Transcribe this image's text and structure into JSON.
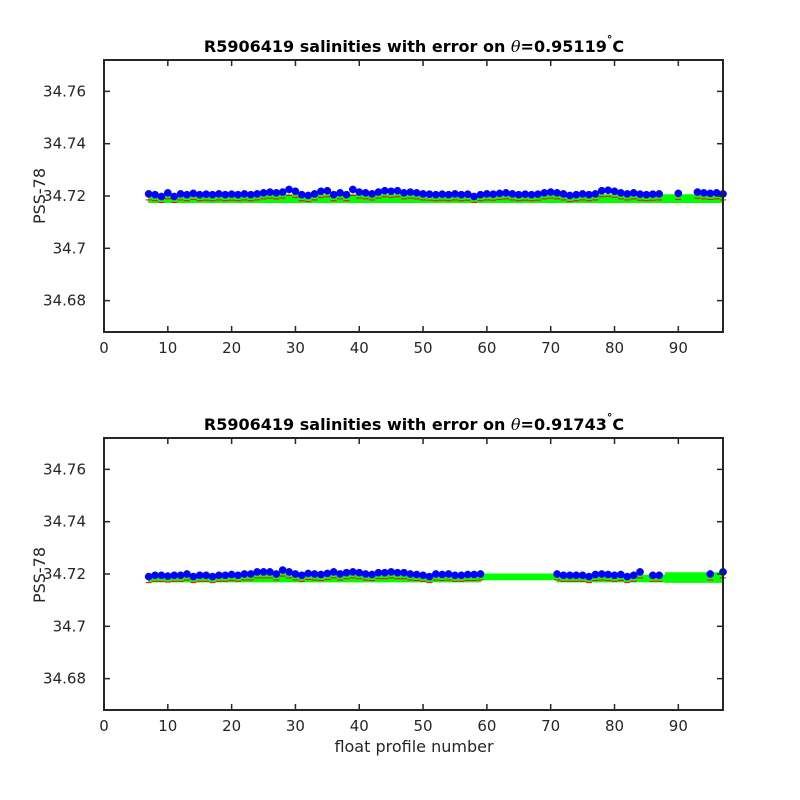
{
  "chart_data": [
    {
      "type": "scatter",
      "title": "R5906419 salinities with error on θ=0.95119°C",
      "title_parts": {
        "prefix": "R5906419 salinities with error on ",
        "theta": "θ",
        "value": "=0.95119",
        "degree": "°",
        "unit": "C"
      },
      "xlabel": "",
      "ylabel": "PSS-78",
      "xlim": [
        0,
        97
      ],
      "ylim": [
        34.668,
        34.772
      ],
      "xticks": [
        0,
        10,
        20,
        30,
        40,
        50,
        60,
        70,
        80,
        90
      ],
      "yticks": [
        34.68,
        34.7,
        34.72,
        34.74,
        34.76
      ],
      "ytick_labels": [
        "34.68",
        "34.7",
        "34.72",
        "34.74",
        "34.76"
      ],
      "grid": false,
      "colors": {
        "points": "#0000ff",
        "error_band": "#00ff00",
        "error_bars": "#ff0000",
        "orange_marks": "#ff9900"
      },
      "band_ranges": [
        {
          "x0": 7,
          "x1": 97,
          "lower": 34.7175,
          "upper": 34.7205
        }
      ],
      "series": [
        {
          "x": [
            7,
            8,
            9,
            10,
            11,
            12,
            13,
            14,
            15,
            16,
            17,
            18,
            19,
            20,
            21,
            22,
            23,
            24,
            25,
            26,
            27,
            28,
            29,
            30,
            31,
            32,
            33,
            34,
            35,
            36,
            37,
            38,
            39,
            40,
            41,
            42,
            43,
            44,
            45,
            46,
            47,
            48,
            49,
            50,
            51,
            52,
            53,
            54,
            55,
            56,
            57,
            58,
            59,
            60,
            61,
            62,
            63,
            64,
            65,
            66,
            67,
            68,
            69,
            70,
            71,
            72,
            73,
            74,
            75,
            76,
            77,
            78,
            79,
            80,
            81,
            82,
            83,
            84,
            85,
            86,
            87,
            90,
            93,
            94,
            95,
            96,
            97
          ],
          "y": [
            34.7208,
            34.7205,
            34.7198,
            34.7212,
            34.7198,
            34.7208,
            34.7205,
            34.721,
            34.7205,
            34.7207,
            34.7205,
            34.7208,
            34.7205,
            34.7207,
            34.7205,
            34.7208,
            34.7205,
            34.7208,
            34.7212,
            34.7215,
            34.7212,
            34.7215,
            34.7225,
            34.7218,
            34.7205,
            34.7202,
            34.7208,
            34.7218,
            34.722,
            34.7205,
            34.7212,
            34.7205,
            34.7225,
            34.7215,
            34.7212,
            34.7208,
            34.7215,
            34.722,
            34.7218,
            34.722,
            34.7212,
            34.7215,
            34.7212,
            34.7208,
            34.7207,
            34.7205,
            34.7207,
            34.7205,
            34.7208,
            34.7205,
            34.7207,
            34.7198,
            34.7205,
            34.7208,
            34.7207,
            34.721,
            34.7212,
            34.7208,
            34.7205,
            34.7207,
            34.7205,
            34.7207,
            34.7212,
            34.7215,
            34.7212,
            34.7208,
            34.7202,
            34.7205,
            34.7208,
            34.7205,
            34.7208,
            34.722,
            34.7222,
            34.7218,
            34.7212,
            34.7208,
            34.7212,
            34.7207,
            34.7205,
            34.7207,
            34.7208,
            34.721,
            34.7215,
            34.7212,
            34.721,
            34.7212,
            34.7208
          ]
        }
      ]
    },
    {
      "type": "scatter",
      "title": "R5906419 salinities with error on θ=0.91743°C",
      "title_parts": {
        "prefix": "R5906419 salinities with error on ",
        "theta": "θ",
        "value": "=0.91743",
        "degree": "°",
        "unit": "C"
      },
      "xlabel": "float profile number",
      "ylabel": "PSS-78",
      "xlim": [
        0,
        97
      ],
      "ylim": [
        34.668,
        34.772
      ],
      "xticks": [
        0,
        10,
        20,
        30,
        40,
        50,
        60,
        70,
        80,
        90
      ],
      "yticks": [
        34.68,
        34.7,
        34.72,
        34.74,
        34.76
      ],
      "ytick_labels": [
        "34.68",
        "34.7",
        "34.72",
        "34.74",
        "34.76"
      ],
      "grid": false,
      "colors": {
        "points": "#0000ff",
        "error_band": "#00ff00",
        "error_bars": "#ff0000",
        "orange_marks": "#ff9900"
      },
      "band_ranges": [
        {
          "x0": 7,
          "x1": 59,
          "lower": 34.717,
          "upper": 34.72
        },
        {
          "x0": 59,
          "x1": 71,
          "lower": 34.7178,
          "upper": 34.72
        },
        {
          "x0": 71,
          "x1": 88,
          "lower": 34.717,
          "upper": 34.7195
        },
        {
          "x0": 88,
          "x1": 97,
          "lower": 34.7168,
          "upper": 34.7205
        }
      ],
      "series": [
        {
          "x": [
            7,
            8,
            9,
            10,
            11,
            12,
            13,
            14,
            15,
            16,
            17,
            18,
            19,
            20,
            21,
            22,
            23,
            24,
            25,
            26,
            27,
            28,
            29,
            30,
            31,
            32,
            33,
            34,
            35,
            36,
            37,
            38,
            39,
            40,
            41,
            42,
            43,
            44,
            45,
            46,
            47,
            48,
            49,
            50,
            51,
            52,
            53,
            54,
            55,
            56,
            57,
            58,
            59,
            71,
            72,
            73,
            74,
            75,
            76,
            77,
            78,
            79,
            80,
            81,
            82,
            83,
            84,
            86,
            87,
            95,
            97
          ],
          "y": [
            34.719,
            34.7195,
            34.7195,
            34.7192,
            34.7195,
            34.7195,
            34.72,
            34.719,
            34.7195,
            34.7195,
            34.719,
            34.7195,
            34.7195,
            34.7198,
            34.7195,
            34.72,
            34.72,
            34.7208,
            34.7208,
            34.7208,
            34.72,
            34.7215,
            34.7208,
            34.72,
            34.7195,
            34.7202,
            34.72,
            34.7198,
            34.7202,
            34.7208,
            34.72,
            34.7205,
            34.7208,
            34.7205,
            34.72,
            34.7198,
            34.7205,
            34.7205,
            34.7208,
            34.7205,
            34.7205,
            34.72,
            34.7198,
            34.7195,
            34.719,
            34.72,
            34.7198,
            34.72,
            34.7195,
            34.7195,
            34.7198,
            34.7198,
            34.72,
            34.72,
            34.7195,
            34.7195,
            34.7195,
            34.7195,
            34.719,
            34.7198,
            34.72,
            34.7198,
            34.7195,
            34.7198,
            34.719,
            34.7195,
            34.7208,
            34.7195,
            34.7195,
            34.72,
            34.7208
          ]
        }
      ]
    }
  ]
}
